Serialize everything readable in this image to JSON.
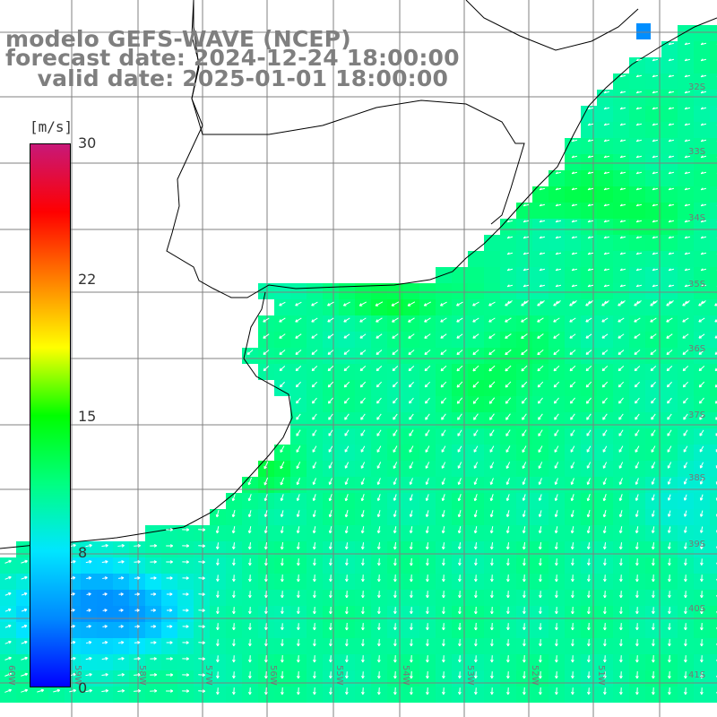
{
  "header": {
    "line1": "modelo GEFS-WAVE (NCEP)",
    "line2": "forecast date: 2024-12-24 18:00:00",
    "line3": "    valid date: 2025-01-01 18:00:00"
  },
  "colorbar": {
    "unit": "[m/s]",
    "ticks": [
      {
        "label": "30",
        "value": 30
      },
      {
        "label": "22",
        "value": 22
      },
      {
        "label": "15",
        "value": 15
      },
      {
        "label": "8",
        "value": 8
      },
      {
        "label": "0",
        "value": 0
      }
    ],
    "stops": [
      "#0000ff",
      "#0088ff",
      "#00e6ff",
      "#00ff80",
      "#00ff00",
      "#ffff00",
      "#ff8000",
      "#ff0000",
      "#c81878"
    ]
  },
  "map": {
    "lat_labels": [
      "32S",
      "33S",
      "34S",
      "35S",
      "36S",
      "37S",
      "38S",
      "39S",
      "40S",
      "41S"
    ],
    "lon_labels": [
      "60W",
      "59W",
      "58W",
      "57W",
      "56W",
      "55W",
      "54W",
      "53W",
      "52W",
      "51W"
    ],
    "ocean_level": "wind speed 8-15 m/s over most of the ocean; strongest (~13-14 m/s, green) along the Uruguay/Rio de la Plata coast; weakest (~3-6 m/s, blue) in the southwest near Bahia Blanca",
    "land_color": "#ffffff",
    "coast_color": "#000000",
    "grid_color": "#808080",
    "arrow_color": "#ffffff"
  }
}
